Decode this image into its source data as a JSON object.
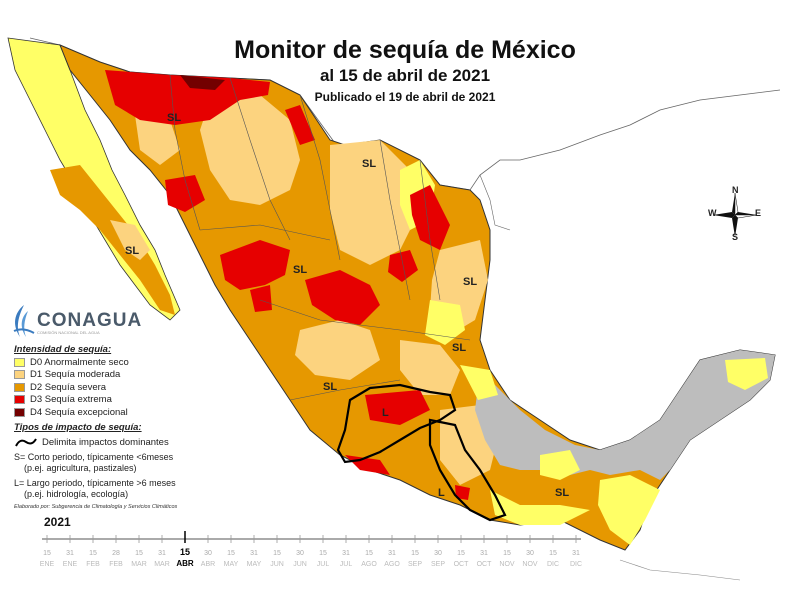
{
  "title": "Monitor de sequía de México",
  "subtitle": "al 15 de abril de 2021",
  "published": "Publicado el 19 de abril de 2021",
  "logo": {
    "name": "CONAGUA",
    "tagline": "COMISIÓN NACIONAL DEL AGUA"
  },
  "legend": {
    "title": "Intensidad de sequía:",
    "items": [
      {
        "code": "D0",
        "label": "D0 Anormalmente seco",
        "color": "#ffff66"
      },
      {
        "code": "D1",
        "label": "D1 Sequía moderada",
        "color": "#fcd37f"
      },
      {
        "code": "D2",
        "label": "D2 Sequía severa",
        "color": "#e69800"
      },
      {
        "code": "D3",
        "label": "D3 Sequía extrema",
        "color": "#e60000"
      },
      {
        "code": "D4",
        "label": "D4 Sequía excepcional",
        "color": "#730000"
      }
    ]
  },
  "impacts": {
    "title": "Tipos de impacto de sequía:",
    "boundary_label": "Delimita impactos dominantes",
    "short_line1": "S= Corto periodo, típicamente <6meses",
    "short_line2": "(p.ej. agricultura, pastizales)",
    "long_line1": "L= Largo periodo, típicamente >6 meses",
    "long_line2": "(p.ej. hidrología, ecología)"
  },
  "credit": "Elaborado por: Subgerencia de Climatología y Servicios Climáticos",
  "year": "2021",
  "timeline": {
    "days": [
      "15",
      "31",
      "15",
      "28",
      "15",
      "31",
      "15",
      "30",
      "15",
      "31",
      "15",
      "30",
      "15",
      "31",
      "15",
      "31",
      "15",
      "30",
      "15",
      "31",
      "15",
      "30",
      "15",
      "31"
    ],
    "months": [
      "ENE",
      "ENE",
      "FEB",
      "FEB",
      "MAR",
      "MAR",
      "ABR",
      "ABR",
      "MAY",
      "MAY",
      "JUN",
      "JUN",
      "JUL",
      "JUL",
      "AGO",
      "AGO",
      "SEP",
      "SEP",
      "OCT",
      "OCT",
      "NOV",
      "NOV",
      "DIC",
      "DIC"
    ],
    "current_index": 6
  },
  "compass": {
    "n": "N",
    "s": "S",
    "e": "E",
    "w": "W"
  },
  "region_labels": [
    "SL",
    "SL",
    "SL",
    "SL",
    "SL",
    "SL",
    "SL",
    "L",
    "L",
    "SL"
  ],
  "colors": {
    "water": "#ffffff",
    "no_drought": "#bdbdbd",
    "border": "#333333"
  }
}
